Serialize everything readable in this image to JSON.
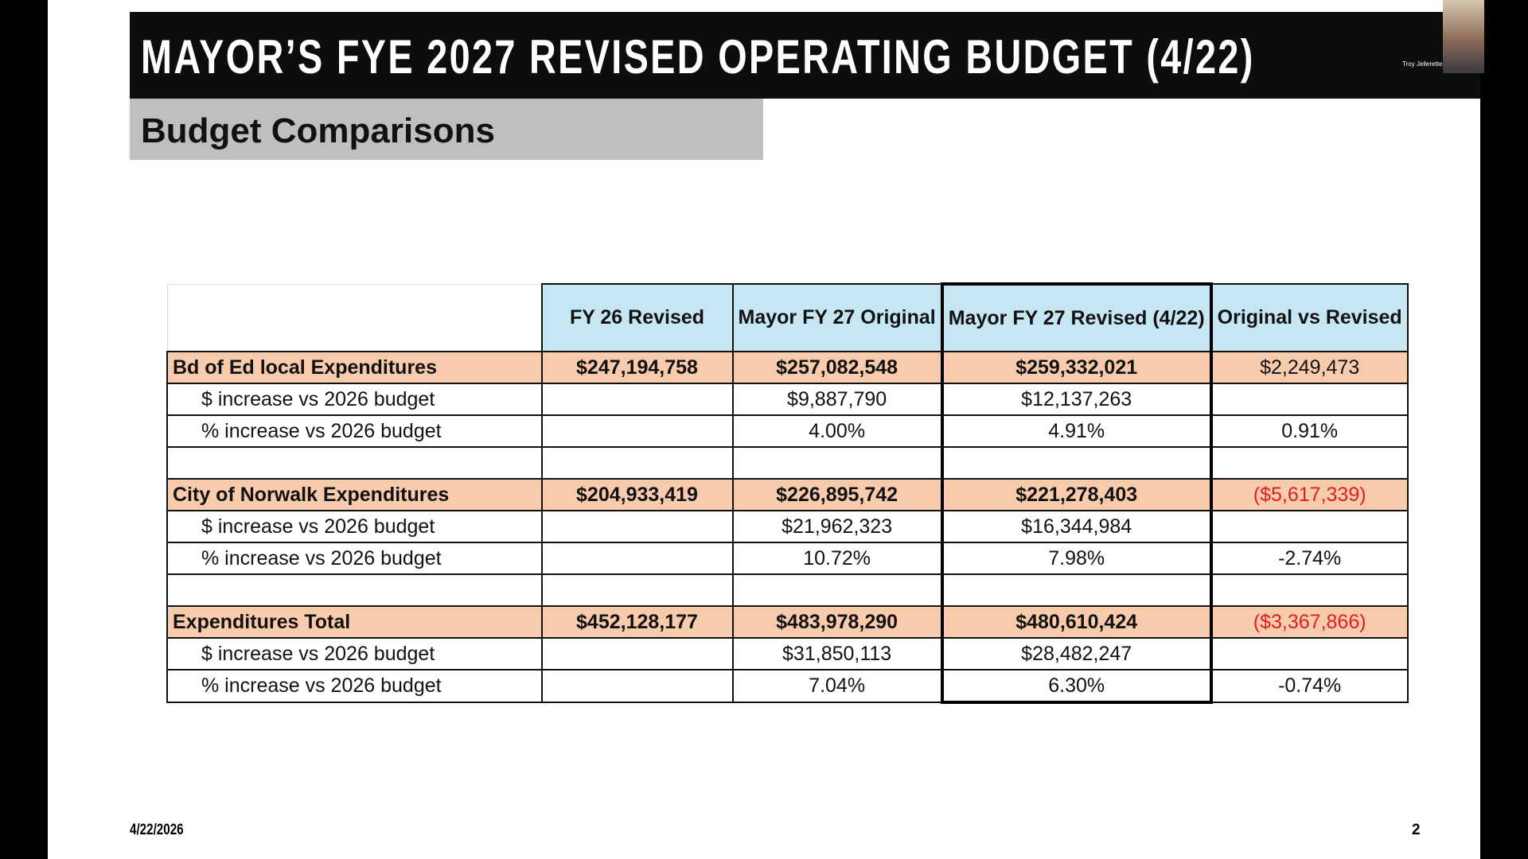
{
  "header": {
    "title": "MAYOR’S FYE 2027 REVISED OPERATING BUDGET (4/22)",
    "subtitle": "Budget Comparisons",
    "presenter": "Troy Jellerette"
  },
  "table": {
    "columns": [
      null,
      "FY 26 Revised",
      "Mayor FY 27 Original",
      "Mayor FY 27 Revised (4/22)",
      "Original vs Revised"
    ],
    "rows": [
      [
        "Bd of Ed local Expenditures",
        "$247,194,758",
        "$257,082,548",
        "$259,332,021",
        "$2,249,473"
      ],
      [
        "$ increase vs 2026 budget",
        null,
        "$9,887,790",
        "$12,137,263",
        null
      ],
      [
        "% increase vs 2026 budget",
        null,
        "4.00%",
        "4.91%",
        "0.91%"
      ],
      [
        null,
        null,
        null,
        null,
        null
      ],
      [
        "City of Norwalk Expenditures",
        "$204,933,419",
        "$226,895,742",
        "$221,278,403",
        "($5,617,339)"
      ],
      [
        "$ increase vs 2026 budget",
        null,
        "$21,962,323",
        "$16,344,984",
        null
      ],
      [
        "% increase vs 2026 budget",
        null,
        "10.72%",
        "7.98%",
        "-2.74%"
      ],
      [
        null,
        null,
        null,
        null,
        null
      ],
      [
        "Expenditures Total",
        "$452,128,177",
        "$483,978,290",
        "$480,610,424",
        "($3,367,866)"
      ],
      [
        "$ increase vs 2026 budget",
        null,
        "$31,850,113",
        "$28,482,247",
        null
      ],
      [
        "% increase vs 2026 budget",
        null,
        "7.04%",
        "6.30%",
        "-0.74%"
      ]
    ]
  },
  "footer": {
    "date": "4/22/2026",
    "page": "2"
  }
}
